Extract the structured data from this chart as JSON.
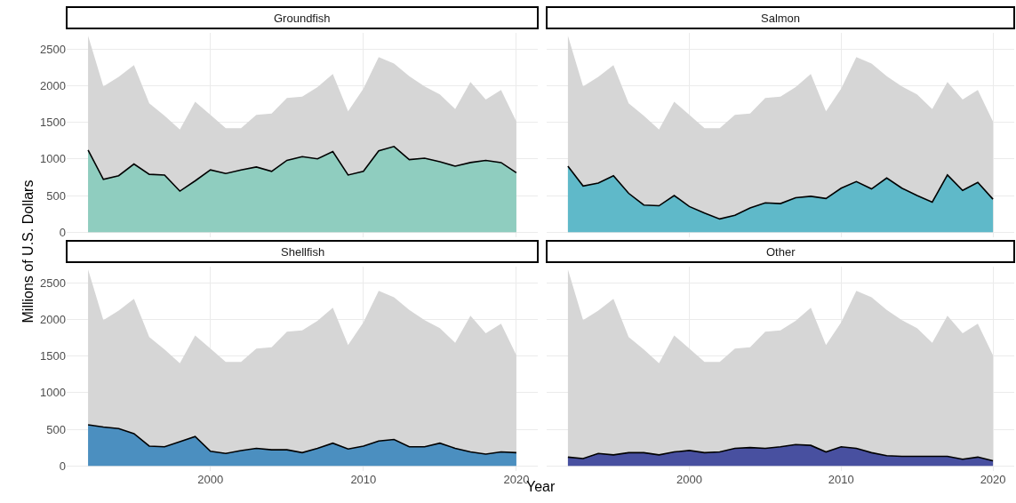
{
  "chart_data": [
    {
      "type": "area",
      "title": "Groundfish",
      "ylabel": "Millions of U.S. Dollars",
      "tick_labels": "y",
      "grid": true,
      "x": [
        1992,
        1993,
        1994,
        1995,
        1996,
        1997,
        1998,
        1999,
        2000,
        2001,
        2002,
        2003,
        2004,
        2005,
        2006,
        2007,
        2008,
        2009,
        2010,
        2011,
        2012,
        2013,
        2014,
        2015,
        2016,
        2017,
        2018,
        2019,
        2020
      ],
      "xlim": [
        1990.6,
        2021.4
      ],
      "xticks": [
        2000,
        2010,
        2020
      ],
      "ylim": [
        -70,
        2720
      ],
      "yticks": [
        0,
        500,
        1000,
        1500,
        2000,
        2500
      ],
      "series": [
        {
          "color": "#d6d6d6",
          "values": [
            2680,
            1990,
            2120,
            2280,
            1760,
            1590,
            1400,
            1780,
            1600,
            1420,
            1420,
            1600,
            1620,
            1830,
            1850,
            1980,
            2160,
            1650,
            1960,
            2390,
            2300,
            2130,
            1990,
            1880,
            1680,
            2050,
            1810,
            1940,
            1510
          ]
        },
        {
          "color": "#8fcdbf",
          "line_style": "solid",
          "values": [
            1120,
            720,
            770,
            930,
            790,
            780,
            560,
            700,
            850,
            800,
            850,
            890,
            830,
            980,
            1030,
            1000,
            1100,
            780,
            830,
            1110,
            1170,
            990,
            1010,
            960,
            900,
            950,
            980,
            950,
            810
          ]
        }
      ]
    },
    {
      "type": "area",
      "title": "Salmon",
      "tick_labels": false,
      "grid": true,
      "x": [
        1992,
        1993,
        1994,
        1995,
        1996,
        1997,
        1998,
        1999,
        2000,
        2001,
        2002,
        2003,
        2004,
        2005,
        2006,
        2007,
        2008,
        2009,
        2010,
        2011,
        2012,
        2013,
        2014,
        2015,
        2016,
        2017,
        2018,
        2019,
        2020
      ],
      "xlim": [
        1990.6,
        2021.4
      ],
      "xticks": [
        2000,
        2010,
        2020
      ],
      "ylim": [
        -70,
        2720
      ],
      "yticks": [
        0,
        500,
        1000,
        1500,
        2000,
        2500
      ],
      "series": [
        {
          "color": "#d6d6d6",
          "values": [
            2680,
            1990,
            2120,
            2280,
            1760,
            1590,
            1400,
            1780,
            1600,
            1420,
            1420,
            1600,
            1620,
            1830,
            1850,
            1980,
            2160,
            1650,
            1960,
            2390,
            2300,
            2130,
            1990,
            1880,
            1680,
            2050,
            1810,
            1940,
            1510
          ]
        },
        {
          "color": "#5fb9c9",
          "line_style": "solid",
          "values": [
            900,
            630,
            670,
            770,
            530,
            370,
            360,
            500,
            350,
            260,
            180,
            230,
            330,
            400,
            390,
            470,
            490,
            460,
            600,
            690,
            590,
            740,
            600,
            500,
            410,
            780,
            570,
            680,
            450
          ]
        }
      ]
    },
    {
      "type": "area",
      "title": "Shellfish",
      "xlabel": "Year",
      "grid": true,
      "x": [
        1992,
        1993,
        1994,
        1995,
        1996,
        1997,
        1998,
        1999,
        2000,
        2001,
        2002,
        2003,
        2004,
        2005,
        2006,
        2007,
        2008,
        2009,
        2010,
        2011,
        2012,
        2013,
        2014,
        2015,
        2016,
        2017,
        2018,
        2019,
        2020
      ],
      "xlim": [
        1990.6,
        2021.4
      ],
      "xticks": [
        2000,
        2010,
        2020
      ],
      "ylim": [
        -70,
        2720
      ],
      "yticks": [
        0,
        500,
        1000,
        1500,
        2000,
        2500
      ],
      "series": [
        {
          "color": "#d6d6d6",
          "values": [
            2680,
            1990,
            2120,
            2280,
            1760,
            1590,
            1400,
            1780,
            1600,
            1420,
            1420,
            1600,
            1620,
            1830,
            1850,
            1980,
            2160,
            1650,
            1960,
            2390,
            2300,
            2130,
            1990,
            1880,
            1680,
            2050,
            1810,
            1940,
            1510
          ]
        },
        {
          "color": "#4b8fc0",
          "line_style": "solid",
          "values": [
            560,
            530,
            510,
            440,
            270,
            260,
            330,
            400,
            200,
            170,
            210,
            240,
            220,
            220,
            180,
            240,
            310,
            230,
            270,
            340,
            360,
            260,
            260,
            310,
            240,
            190,
            160,
            190,
            180
          ]
        }
      ]
    },
    {
      "type": "area",
      "title": "Other",
      "tick_labels": "x",
      "grid": true,
      "x": [
        1992,
        1993,
        1994,
        1995,
        1996,
        1997,
        1998,
        1999,
        2000,
        2001,
        2002,
        2003,
        2004,
        2005,
        2006,
        2007,
        2008,
        2009,
        2010,
        2011,
        2012,
        2013,
        2014,
        2015,
        2016,
        2017,
        2018,
        2019,
        2020
      ],
      "xlim": [
        1990.6,
        2021.4
      ],
      "xticks": [
        2000,
        2010,
        2020
      ],
      "ylim": [
        -70,
        2720
      ],
      "yticks": [
        0,
        500,
        1000,
        1500,
        2000,
        2500
      ],
      "series": [
        {
          "color": "#d6d6d6",
          "values": [
            2680,
            1990,
            2120,
            2280,
            1760,
            1590,
            1400,
            1780,
            1600,
            1420,
            1420,
            1600,
            1620,
            1830,
            1850,
            1980,
            2160,
            1650,
            1960,
            2390,
            2300,
            2130,
            1990,
            1880,
            1680,
            2050,
            1810,
            1940,
            1510
          ]
        },
        {
          "color": "#4850a0",
          "line_style": "solid",
          "values": [
            120,
            100,
            170,
            150,
            180,
            180,
            150,
            190,
            210,
            180,
            190,
            240,
            250,
            240,
            260,
            290,
            280,
            190,
            260,
            240,
            180,
            140,
            130,
            130,
            130,
            130,
            90,
            120,
            70
          ]
        }
      ]
    }
  ]
}
